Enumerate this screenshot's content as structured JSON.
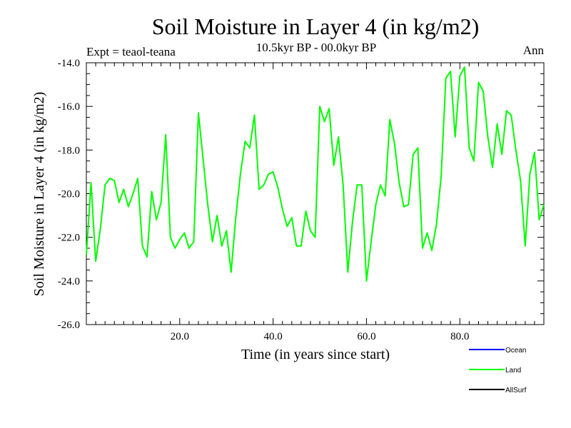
{
  "chart_data": {
    "type": "line",
    "title": "Soil Moisture in Layer 4 (in kg/m2)",
    "subtitle": "10.5kyr BP - 00.0kyr BP",
    "experiment": "Expt = teaol-teana",
    "season": "Ann",
    "xlabel": "Time (in years since start)",
    "ylabel": "Soil Moisture in Layer 4 (in kg/m2)",
    "xlim": [
      0,
      98
    ],
    "ylim": [
      -26,
      -14
    ],
    "x_ticks": [
      20,
      40,
      60,
      80
    ],
    "x_tick_labels": [
      "20.0",
      "40.0",
      "60.0",
      "80.0"
    ],
    "y_ticks": [
      -26,
      -24,
      -22,
      -20,
      -18,
      -16,
      -14
    ],
    "y_tick_labels": [
      "-26.0",
      "-24.0",
      "-22.0",
      "-20.0",
      "-18.0",
      "-16.0",
      "-14.0"
    ],
    "legend": [
      {
        "name": "Ocean",
        "color": "#0000ff"
      },
      {
        "name": "Land",
        "color": "#00ff00"
      },
      {
        "name": "AllSurf",
        "color": "#000000"
      }
    ],
    "series": [
      {
        "name": "Land",
        "color": "#00ff00",
        "x_start": 0,
        "x_step": 1,
        "values": [
          -22.8,
          -19.5,
          -23.1,
          -21.6,
          -19.6,
          -19.3,
          -19.4,
          -20.4,
          -19.8,
          -20.6,
          -20.0,
          -19.3,
          -22.4,
          -22.9,
          -19.9,
          -21.2,
          -20.4,
          -17.3,
          -22.0,
          -22.5,
          -22.1,
          -21.8,
          -22.5,
          -22.2,
          -16.3,
          -18.4,
          -20.5,
          -22.2,
          -21.0,
          -22.4,
          -21.7,
          -23.6,
          -21.1,
          -19.1,
          -17.6,
          -17.9,
          -16.4,
          -19.8,
          -19.6,
          -19.1,
          -19.0,
          -19.7,
          -20.7,
          -21.5,
          -21.1,
          -22.4,
          -22.4,
          -20.8,
          -21.7,
          -22.0,
          -16.0,
          -16.7,
          -16.1,
          -18.7,
          -17.4,
          -19.6,
          -23.6,
          -21.3,
          -19.6,
          -19.6,
          -24.0,
          -22.2,
          -20.5,
          -19.6,
          -20.1,
          -16.6,
          -17.7,
          -19.5,
          -20.6,
          -20.5,
          -18.2,
          -17.9,
          -22.5,
          -21.8,
          -22.6,
          -21.4,
          -19.2,
          -14.7,
          -14.4,
          -17.4,
          -14.6,
          -14.2,
          -17.9,
          -18.5,
          -14.9,
          -15.3,
          -17.4,
          -18.8,
          -16.8,
          -18.2,
          -16.2,
          -16.4,
          -18.0,
          -19.4,
          -22.4,
          -19.1,
          -18.1,
          -21.2,
          -20.5
        ]
      }
    ]
  }
}
